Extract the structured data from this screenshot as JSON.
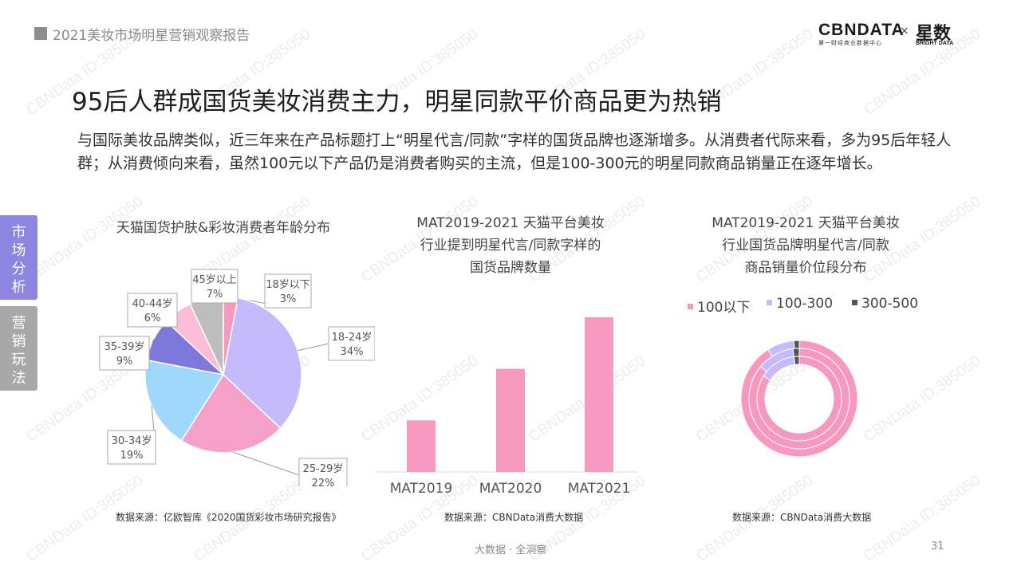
{
  "header": {
    "report_title": "2021美妆市场明星营销观察报告",
    "logo_main": "CBNDATA",
    "logo_main_sub": "第一财经商业数据中心",
    "logo_times": "×",
    "logo_partner": "星数",
    "logo_partner_sub": "BRIGHT DATA"
  },
  "title": "95后人群成国货美妆消费主力，明星同款平价商品更为热销",
  "intro": "与国际美妆品牌类似，近三年来在产品标题打上“明星代言/同款”字样的国货品牌也逐渐增多。从消费者代际来看，多为95后年轻人群；从消费倾向来看，虽然100元以下产品仍是消费者购买的主流，但是100-300元的明星同款商品销量正在逐年增长。",
  "sidebar": {
    "tabs": [
      {
        "label_chars": [
          "市",
          "场",
          "分",
          "析"
        ],
        "active": true
      },
      {
        "label_chars": [
          "营",
          "销",
          "玩",
          "法"
        ],
        "active": false
      }
    ]
  },
  "watermark": "CBNData ID:385050",
  "colors": {
    "pink": "#f799bf",
    "lavender": "#c5bafc",
    "light_blue": "#a0d8fb",
    "purple": "#7f78db",
    "light_pink": "#fbbcd8",
    "gray": "#bdbdbd",
    "dark_gray": "#555555",
    "hot_pink": "#f290c0",
    "tab_active": "#8c86e0",
    "tab_inactive": "#a8a8a8"
  },
  "chart_data": [
    {
      "type": "pie",
      "title": "天猫国货护肤&彩妆消费者年龄分布",
      "source": "数据来源：亿欧智库《2020国货彩妆市场研究报告》",
      "slices": [
        {
          "label": "18岁以下",
          "value": 3,
          "value_label": "3%",
          "color": "#f799bf"
        },
        {
          "label": "18-24岁",
          "value": 34,
          "value_label": "34%",
          "color": "#c5bafc"
        },
        {
          "label": "25-29岁",
          "value": 22,
          "value_label": "22%",
          "color": "#f5a0c8"
        },
        {
          "label": "30-34岁",
          "value": 19,
          "value_label": "19%",
          "color": "#a0d8fb"
        },
        {
          "label": "35-39岁",
          "value": 9,
          "value_label": "9%",
          "color": "#7f78db"
        },
        {
          "label": "40-44岁",
          "value": 6,
          "value_label": "6%",
          "color": "#fbbcd8"
        },
        {
          "label": "45岁以上",
          "value": 7,
          "value_label": "7%",
          "color": "#bdbdbd"
        }
      ]
    },
    {
      "type": "bar",
      "title_lines": [
        "MAT2019-2021 天猫平台美妆",
        "行业提到明星代言/同款字样的",
        "国货品牌数量"
      ],
      "source": "数据来源：CBNData消费大数据",
      "categories": [
        "MAT2019",
        "MAT2020",
        "MAT2021"
      ],
      "values": [
        1,
        2,
        3
      ],
      "color": "#f799bf"
    },
    {
      "type": "donut",
      "title_lines": [
        "MAT2019-2021 天猫平台美妆",
        "行业国货品牌明星代言/同款",
        "商品销量价位段分布"
      ],
      "source": "数据来源：CBNData消费大数据",
      "legend": [
        {
          "label": "100以下",
          "color": "#f799bf"
        },
        {
          "label": "100-300",
          "color": "#c5bafc"
        },
        {
          "label": "300-500",
          "color": "#555555"
        }
      ],
      "series": [
        {
          "ring": "outer",
          "values": [
            91,
            7.5,
            1.5
          ]
        },
        {
          "ring": "middle",
          "values": [
            86,
            12,
            2
          ]
        },
        {
          "ring": "inner",
          "values": [
            84,
            14,
            2
          ]
        }
      ]
    }
  ],
  "footer": {
    "tagline": "大数据 · 全洞察",
    "page": "31"
  }
}
